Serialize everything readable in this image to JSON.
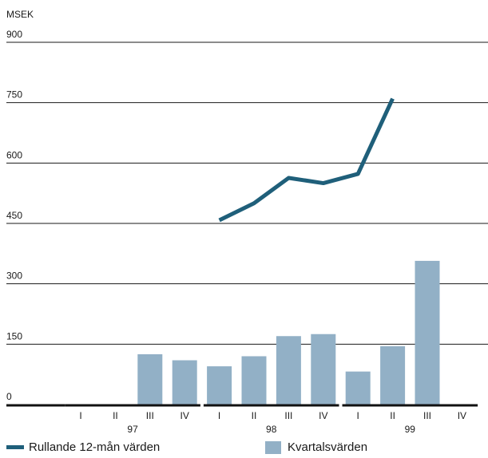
{
  "chart_data": {
    "type": "bar+line",
    "unit_label": "MSEK",
    "y_ticks": [
      0,
      150,
      300,
      450,
      600,
      750,
      900
    ],
    "ylim": [
      0,
      900
    ],
    "grid": true,
    "categories": [
      "I",
      "II",
      "III",
      "IV",
      "I",
      "II",
      "III",
      "IV",
      "I",
      "II",
      "III",
      "IV"
    ],
    "year_groups": [
      {
        "label": "97",
        "start": 0,
        "end": 3
      },
      {
        "label": "98",
        "start": 4,
        "end": 7
      },
      {
        "label": "99",
        "start": 8,
        "end": 11
      }
    ],
    "series": [
      {
        "name": "Kvartalsvärden",
        "type": "bar",
        "values": [
          null,
          null,
          125,
          110,
          95,
          120,
          170,
          175,
          82,
          145,
          357,
          null
        ]
      },
      {
        "name": "Rullande 12-mån värden",
        "type": "line",
        "values": [
          null,
          null,
          null,
          null,
          458,
          500,
          563,
          550,
          573,
          760,
          null,
          null
        ]
      }
    ],
    "colors": {
      "bar": "#92b0c6",
      "line": "#1f5f7a",
      "grid": "#1a1a1a",
      "baseline": "#111111"
    }
  },
  "legend": {
    "line_label": "Rullande 12-mån värden",
    "bar_label": "Kvartalsvärden"
  }
}
